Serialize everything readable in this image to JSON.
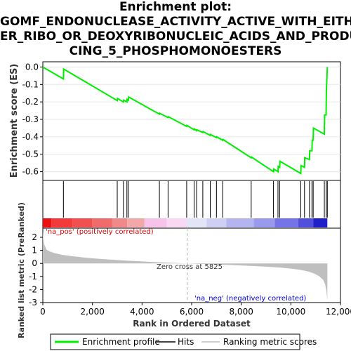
{
  "title_lines": [
    "Enrichment plot:",
    "GOMF_ENDONUCLEASE_ACTIVITY_ACTIVE_WITH_EITH",
    "ER_RIBO_OR_DEOXYRIBONUCLEIC_ACIDS_AND_PRODU",
    "CING_5_PHOSPHOMONOESTERS"
  ],
  "colors": {
    "es_line": "#00ee00",
    "hits": "#000000",
    "metric_fill": "#bfbfbf",
    "zero_line": "#b0b0b0"
  },
  "chart_data": [
    {
      "type": "line",
      "panel": "enrichment",
      "ylabel": "Enrichment score (ES)",
      "ylim": [
        -0.65,
        0.03
      ],
      "yticks": [
        0.0,
        -0.1,
        -0.2,
        -0.3,
        -0.4,
        -0.5,
        -0.6
      ],
      "ytick_labels": [
        "0.0",
        "-0.1",
        "-0.2",
        "-0.3",
        "-0.4",
        "-0.5",
        "-0.6"
      ],
      "series": [
        {
          "name": "Enrichment profile",
          "x": [
            0,
            830,
            840,
            3000,
            3010,
            3250,
            3260,
            3390,
            3400,
            3450,
            3460,
            4700,
            4710,
            5050,
            5060,
            5800,
            5810,
            6100,
            6110,
            6200,
            6210,
            6450,
            6460,
            6750,
            6760,
            7000,
            7010,
            7250,
            7260,
            8400,
            8410,
            9300,
            9310,
            9480,
            9490,
            9550,
            9560,
            10400,
            10410,
            10550,
            10560,
            10750,
            10760,
            10850,
            10860,
            10900,
            10910,
            11350,
            11360,
            11420,
            11430,
            11470
          ],
          "y": [
            0.0,
            -0.068,
            -0.012,
            -0.192,
            -0.18,
            -0.2,
            -0.19,
            -0.2,
            -0.185,
            -0.19,
            -0.172,
            -0.27,
            -0.265,
            -0.29,
            -0.285,
            -0.34,
            -0.335,
            -0.36,
            -0.355,
            -0.365,
            -0.36,
            -0.375,
            -0.37,
            -0.392,
            -0.387,
            -0.405,
            -0.4,
            -0.42,
            -0.415,
            -0.52,
            -0.516,
            -0.6,
            -0.585,
            -0.6,
            -0.57,
            -0.575,
            -0.54,
            -0.61,
            -0.565,
            -0.575,
            -0.52,
            -0.53,
            -0.48,
            -0.48,
            -0.42,
            -0.42,
            -0.35,
            -0.385,
            -0.275,
            -0.275,
            -0.14,
            0.0
          ]
        }
      ]
    },
    {
      "type": "scatter",
      "panel": "hits",
      "series": [
        {
          "name": "Hits",
          "x": [
            830,
            3000,
            3250,
            3390,
            3450,
            4700,
            5050,
            5800,
            6100,
            6200,
            6450,
            6750,
            7000,
            7250,
            8400,
            9300,
            9480,
            9550,
            10400,
            10550,
            10750,
            10850,
            10900,
            11350,
            11420,
            11470
          ]
        }
      ]
    },
    {
      "type": "heatmap",
      "panel": "rank_colorbar",
      "labels": {
        "pos": "'na_pos' (positively correlated)"
      },
      "segments": [
        {
          "x0": 0,
          "x1": 350,
          "color": "#ee1111"
        },
        {
          "x0": 350,
          "x1": 1200,
          "color": "#f33a3a"
        },
        {
          "x0": 1200,
          "x1": 2000,
          "color": "#f25050"
        },
        {
          "x0": 2000,
          "x1": 2800,
          "color": "#f06c6c"
        },
        {
          "x0": 2800,
          "x1": 3400,
          "color": "#f08a8a"
        },
        {
          "x0": 3400,
          "x1": 4100,
          "color": "#f2a8a8"
        },
        {
          "x0": 4100,
          "x1": 5000,
          "color": "#f6c4ea"
        },
        {
          "x0": 5000,
          "x1": 5800,
          "color": "#f8d8f2"
        },
        {
          "x0": 5800,
          "x1": 6600,
          "color": "#e4e4f8"
        },
        {
          "x0": 6600,
          "x1": 7400,
          "color": "#cfcff4"
        },
        {
          "x0": 7400,
          "x1": 8500,
          "color": "#b4b4f0"
        },
        {
          "x0": 8500,
          "x1": 9350,
          "color": "#9a9aec"
        },
        {
          "x0": 9350,
          "x1": 10300,
          "color": "#7474e6"
        },
        {
          "x0": 10300,
          "x1": 10900,
          "color": "#5050dc"
        },
        {
          "x0": 10900,
          "x1": 11470,
          "color": "#2020c8"
        }
      ]
    },
    {
      "type": "area",
      "panel": "ranked_metric",
      "xlabel": "Rank in Ordered Dataset",
      "ylabel": "Ranked list metric (PreRanked)",
      "xlim": [
        0,
        12000
      ],
      "ylim": [
        -3,
        2.7
      ],
      "xticks": [
        0,
        2000,
        4000,
        6000,
        8000,
        10000,
        12000
      ],
      "xtick_labels": [
        "0",
        "2,000",
        "4,000",
        "6,000",
        "8,000",
        "10,000",
        "12,000"
      ],
      "yticks": [
        2,
        1,
        0,
        -1,
        -2,
        -3
      ],
      "ytick_labels": [
        "2",
        "1",
        "0",
        "-1",
        "-2",
        "-3"
      ],
      "annotations": {
        "zero_cross": "Zero cross at 5825",
        "neg": "'na_neg' (negatively correlated)"
      },
      "zero_cross_x": 5825,
      "series": [
        {
          "name": "Ranking metric scores",
          "x": [
            0,
            20,
            60,
            150,
            300,
            500,
            800,
            1200,
            1800,
            2500,
            3300,
            4200,
            5000,
            5825,
            6600,
            7500,
            8300,
            9000,
            9600,
            10000,
            10400,
            10700,
            10950,
            11150,
            11300,
            11380,
            11430,
            11470
          ],
          "y": [
            2.45,
            1.9,
            1.45,
            1.05,
            0.9,
            0.78,
            0.65,
            0.55,
            0.42,
            0.32,
            0.22,
            0.13,
            0.06,
            0.0,
            -0.06,
            -0.12,
            -0.18,
            -0.25,
            -0.32,
            -0.4,
            -0.5,
            -0.62,
            -0.78,
            -1.0,
            -1.25,
            -1.6,
            -2.1,
            -2.8
          ]
        }
      ]
    }
  ],
  "legend": {
    "items": [
      {
        "label": "Enrichment profile"
      },
      {
        "label": "Hits"
      },
      {
        "label": "Ranking metric scores"
      }
    ]
  }
}
